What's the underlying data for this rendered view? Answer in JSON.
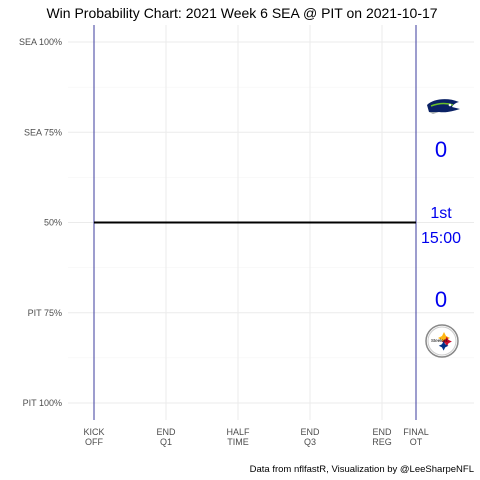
{
  "chart_data": {
    "type": "line",
    "title": "Win Probability Chart: 2021 Week 6 SEA @ PIT on 2021-10-17",
    "y_tick_labels": [
      "SEA 100%",
      "SEA 75%",
      "50%",
      "PIT 75%",
      "PIT 100%"
    ],
    "y_tick_values": [
      0,
      0.25,
      0.5,
      0.75,
      1
    ],
    "ylim": [
      0,
      1
    ],
    "x_ticks": [
      {
        "line1": "KICK",
        "line2": "OFF"
      },
      {
        "line1": "END",
        "line2": "Q1"
      },
      {
        "line1": "HALF",
        "line2": "TIME"
      },
      {
        "line1": "END",
        "line2": "Q3"
      },
      {
        "line1": "END",
        "line2": "REG"
      },
      {
        "line1": "FINAL",
        "line2": "OT"
      }
    ],
    "series": [
      {
        "x": [
          0,
          1
        ],
        "y": [
          0.5,
          0.5
        ]
      }
    ],
    "grid": true,
    "colors": {
      "line": "#000000",
      "bounds": "#3b3b9e",
      "score": "#0000ee",
      "grid": "#ebebeb"
    }
  },
  "scoreboard": {
    "away_team": "SEA",
    "home_team": "PIT",
    "away_score": "0",
    "home_score": "0",
    "quarter": "1st",
    "clock": "15:00"
  },
  "credit": "Data from nflfastR, Visualization by @LeeSharpeNFL"
}
